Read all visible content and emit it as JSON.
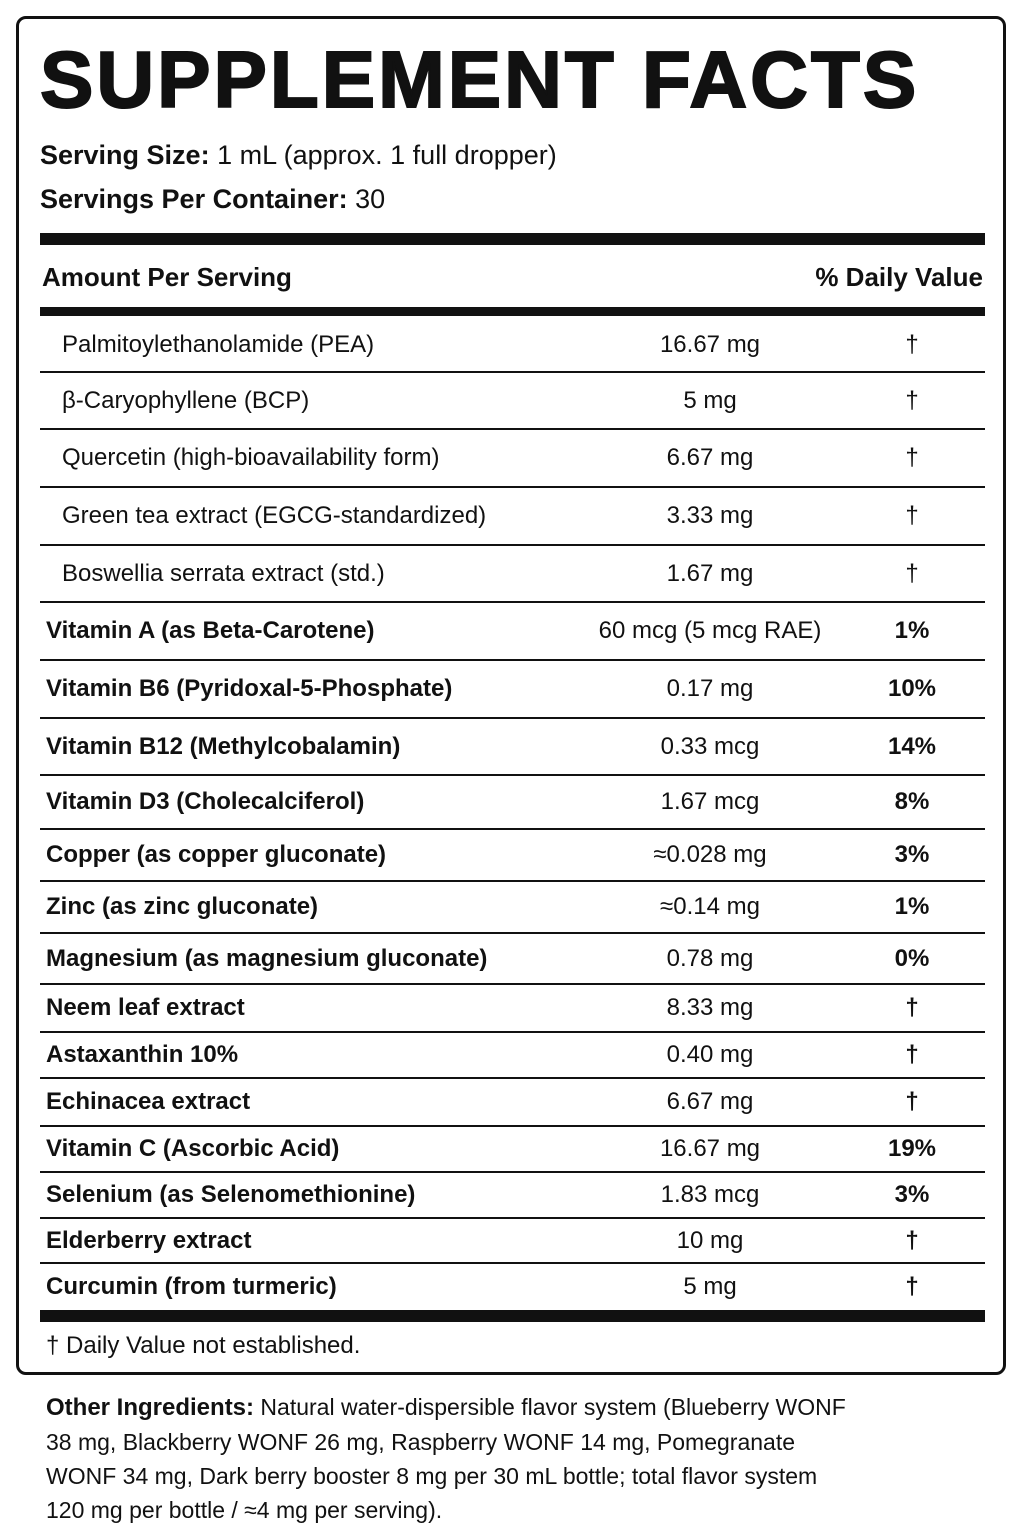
{
  "title": "SUPPLEMENT FACTS",
  "serving": [
    {
      "label": "Serving Size:",
      "value": "1 mL (approx. 1 full dropper)"
    },
    {
      "label": "Servings Per Container:",
      "value": "30"
    }
  ],
  "table": {
    "header": [
      "Amount Per Serving",
      "% Daily Value"
    ],
    "blend_rows": [
      [
        "Palmitoylethanolamide (PEA)",
        "16.67 mg",
        "†"
      ],
      [
        "β-Caryophyllene (BCP)",
        "5 mg",
        "†"
      ],
      [
        "Quercetin (high-bioavailability form)",
        "6.67 mg",
        "†"
      ],
      [
        "Green tea extract (EGCG-standardized)",
        "3.33 mg",
        "†"
      ],
      [
        "Boswellia serrata extract (std.)",
        "1.67 mg",
        "†"
      ]
    ],
    "nutrient_rows": [
      [
        "Vitamin A (as Beta-Carotene)",
        "60 mcg (5 mcg RAE)",
        "1%"
      ],
      [
        "Vitamin B6 (Pyridoxal-5-Phosphate)",
        "0.17 mg",
        "10%"
      ],
      [
        "Vitamin B12 (Methylcobalamin)",
        "0.33 mcg",
        "14%"
      ],
      [
        "Vitamin D3 (Cholecalciferol)",
        "1.67 mcg",
        "8%"
      ],
      [
        "Copper (as copper gluconate)",
        "≈0.028 mg",
        "3%"
      ],
      [
        "Zinc (as zinc gluconate)",
        "≈0.14 mg",
        "1%"
      ],
      [
        "Magnesium (as magnesium gluconate)",
        "0.78 mg",
        "0%"
      ],
      [
        "Neem leaf extract",
        "8.33 mg",
        "†"
      ],
      [
        "Astaxanthin 10%",
        "0.40 mg",
        "†"
      ],
      [
        "Echinacea extract",
        "6.67 mg",
        "†"
      ],
      [
        "Vitamin C (Ascorbic Acid)",
        "16.67 mg",
        "19%"
      ],
      [
        "Selenium (as Selenomethionine)",
        "1.83 mcg",
        "3%"
      ],
      [
        "Elderberry extract",
        "10 mg",
        "†"
      ],
      [
        "Curcumin (from turmeric)",
        "5 mg",
        "†"
      ]
    ]
  },
  "footnote": "† Daily Value not established.",
  "other_ingredients": {
    "label": "Other Ingredients:",
    "text": "Natural water-dispersible flavor system (Blueberry WONF 38 mg, Blackberry WONF 26 mg, Raspberry WONF 14 mg, Pomegranate WONF 34 mg, Dark berry booster 8 mg per 30 mL bottle; total flavor system 120 mg per bottle / ≈4 mg per serving)."
  }
}
